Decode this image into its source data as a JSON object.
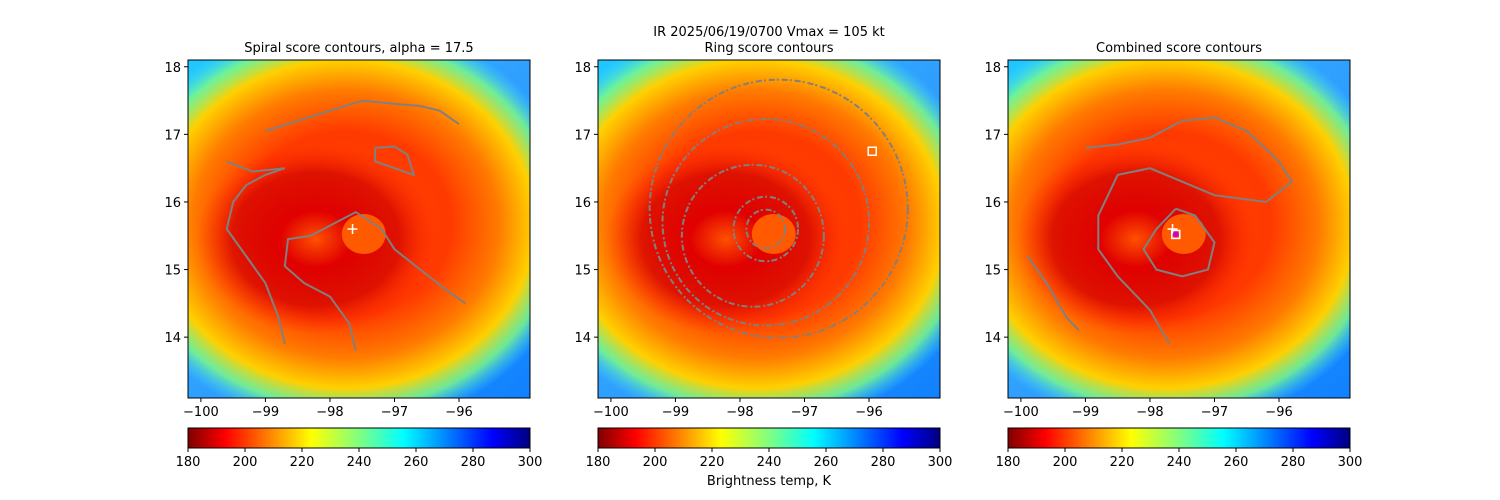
{
  "figure": {
    "suptitle": "IR  2025/06/19/0700    Vmax = 105 kt",
    "colorbar_label": "Brightness temp, K"
  },
  "chart_data": [
    {
      "type": "heatmap",
      "title": "Spiral score contours, alpha = 17.5",
      "xlim": [
        -100.2,
        -94.9
      ],
      "ylim": [
        13.1,
        18.1
      ],
      "xticks": [
        -100,
        -99,
        -98,
        -97,
        -96
      ],
      "yticks": [
        14,
        15,
        16,
        17,
        18
      ],
      "colorbar": {
        "range": [
          180,
          300
        ],
        "ticks": [
          180,
          200,
          220,
          240,
          260,
          280,
          300
        ],
        "colormap": "jet_r"
      },
      "storm_center": {
        "lon": -97.6,
        "lat": 15.6
      },
      "markers": [
        {
          "kind": "plus",
          "lon": -97.65,
          "lat": 15.6,
          "color": "#ffffff"
        }
      ],
      "contours": [
        [
          [
            -99.0,
            17.05
          ],
          [
            -98.5,
            17.2
          ],
          [
            -98.0,
            17.35
          ],
          [
            -97.5,
            17.5
          ],
          [
            -97.0,
            17.45
          ],
          [
            -96.6,
            17.42
          ],
          [
            -96.3,
            17.35
          ],
          [
            -96.0,
            17.15
          ]
        ],
        [
          [
            -97.3,
            16.8
          ],
          [
            -97.0,
            16.82
          ],
          [
            -96.8,
            16.7
          ],
          [
            -96.7,
            16.4
          ],
          [
            -97.0,
            16.5
          ],
          [
            -97.3,
            16.6
          ],
          [
            -97.3,
            16.8
          ]
        ],
        [
          [
            -98.7,
            16.5
          ],
          [
            -99.0,
            16.4
          ],
          [
            -99.3,
            16.25
          ],
          [
            -99.5,
            16.0
          ],
          [
            -99.6,
            15.6
          ],
          [
            -99.3,
            15.2
          ],
          [
            -99.0,
            14.8
          ],
          [
            -98.8,
            14.3
          ],
          [
            -98.7,
            13.9
          ]
        ],
        [
          [
            -99.6,
            16.6
          ],
          [
            -99.2,
            16.45
          ],
          [
            -98.7,
            16.5
          ]
        ],
        [
          [
            -98.4,
            14.8
          ],
          [
            -98.7,
            15.05
          ],
          [
            -98.65,
            15.45
          ],
          [
            -98.3,
            15.5
          ],
          [
            -97.9,
            15.7
          ],
          [
            -97.6,
            15.85
          ],
          [
            -97.2,
            15.6
          ],
          [
            -97.0,
            15.3
          ],
          [
            -96.6,
            15.0
          ],
          [
            -96.2,
            14.7
          ],
          [
            -95.9,
            14.5
          ]
        ],
        [
          [
            -98.4,
            14.8
          ],
          [
            -98.0,
            14.6
          ],
          [
            -97.7,
            14.2
          ],
          [
            -97.6,
            13.8
          ]
        ]
      ]
    },
    {
      "type": "heatmap",
      "title": "Ring score contours",
      "xlim": [
        -100.2,
        -94.9
      ],
      "ylim": [
        13.1,
        18.1
      ],
      "xticks": [
        -100,
        -99,
        -98,
        -97,
        -96
      ],
      "yticks": [
        14,
        15,
        16,
        17,
        18
      ],
      "colorbar": {
        "range": [
          180,
          300
        ],
        "ticks": [
          180,
          200,
          220,
          240,
          260,
          280,
          300
        ],
        "colormap": "jet_r"
      },
      "storm_center": {
        "lon": -97.6,
        "lat": 15.6
      },
      "markers": [
        {
          "kind": "square",
          "lon": -95.95,
          "lat": 16.75,
          "color": "#ffffff"
        }
      ],
      "ring_contours": [
        {
          "lon": -97.6,
          "lat": 15.6,
          "r": 0.3
        },
        {
          "lon": -97.6,
          "lat": 15.6,
          "r": 0.5
        },
        {
          "lon": -97.8,
          "lat": 15.5,
          "r": 1.1
        },
        {
          "lon": -97.6,
          "lat": 15.7,
          "r": 1.6
        },
        {
          "lon": -97.4,
          "lat": 15.9,
          "r": 2.0
        }
      ]
    },
    {
      "type": "heatmap",
      "title": "Combined score contours",
      "xlim": [
        -100.2,
        -94.9
      ],
      "ylim": [
        13.1,
        18.1
      ],
      "xticks": [
        -100,
        -99,
        -98,
        -97,
        -96
      ],
      "yticks": [
        14,
        15,
        16,
        17,
        18
      ],
      "colorbar": {
        "range": [
          180,
          300
        ],
        "ticks": [
          180,
          200,
          220,
          240,
          260,
          280,
          300
        ],
        "colormap": "jet_r"
      },
      "storm_center": {
        "lon": -97.6,
        "lat": 15.6
      },
      "markers": [
        {
          "kind": "plus",
          "lon": -97.65,
          "lat": 15.6,
          "color": "#ffffff"
        },
        {
          "kind": "square",
          "lon": -97.6,
          "lat": 15.52,
          "color": "#ffffff"
        },
        {
          "kind": "dot",
          "lon": -97.6,
          "lat": 15.52,
          "color": "#cc00cc"
        }
      ],
      "contours": [
        [
          [
            -99.0,
            16.8
          ],
          [
            -98.5,
            16.85
          ],
          [
            -98.0,
            16.95
          ],
          [
            -97.5,
            17.2
          ],
          [
            -97.0,
            17.25
          ],
          [
            -96.5,
            17.05
          ],
          [
            -96.0,
            16.6
          ],
          [
            -95.8,
            16.3
          ],
          [
            -96.2,
            16.0
          ],
          [
            -97.0,
            16.1
          ],
          [
            -97.5,
            16.3
          ],
          [
            -98.0,
            16.5
          ],
          [
            -98.5,
            16.4
          ],
          [
            -98.8,
            15.8
          ],
          [
            -98.8,
            15.3
          ],
          [
            -98.5,
            14.9
          ],
          [
            -98.0,
            14.4
          ],
          [
            -97.7,
            13.9
          ]
        ],
        [
          [
            -99.9,
            15.2
          ],
          [
            -99.6,
            14.8
          ],
          [
            -99.3,
            14.3
          ],
          [
            -99.1,
            14.1
          ]
        ],
        [
          [
            -97.6,
            15.9
          ],
          [
            -97.3,
            15.8
          ],
          [
            -97.0,
            15.4
          ],
          [
            -97.1,
            15.0
          ],
          [
            -97.5,
            14.9
          ],
          [
            -97.9,
            15.0
          ],
          [
            -98.1,
            15.3
          ],
          [
            -97.9,
            15.6
          ],
          [
            -97.6,
            15.9
          ]
        ]
      ]
    }
  ]
}
